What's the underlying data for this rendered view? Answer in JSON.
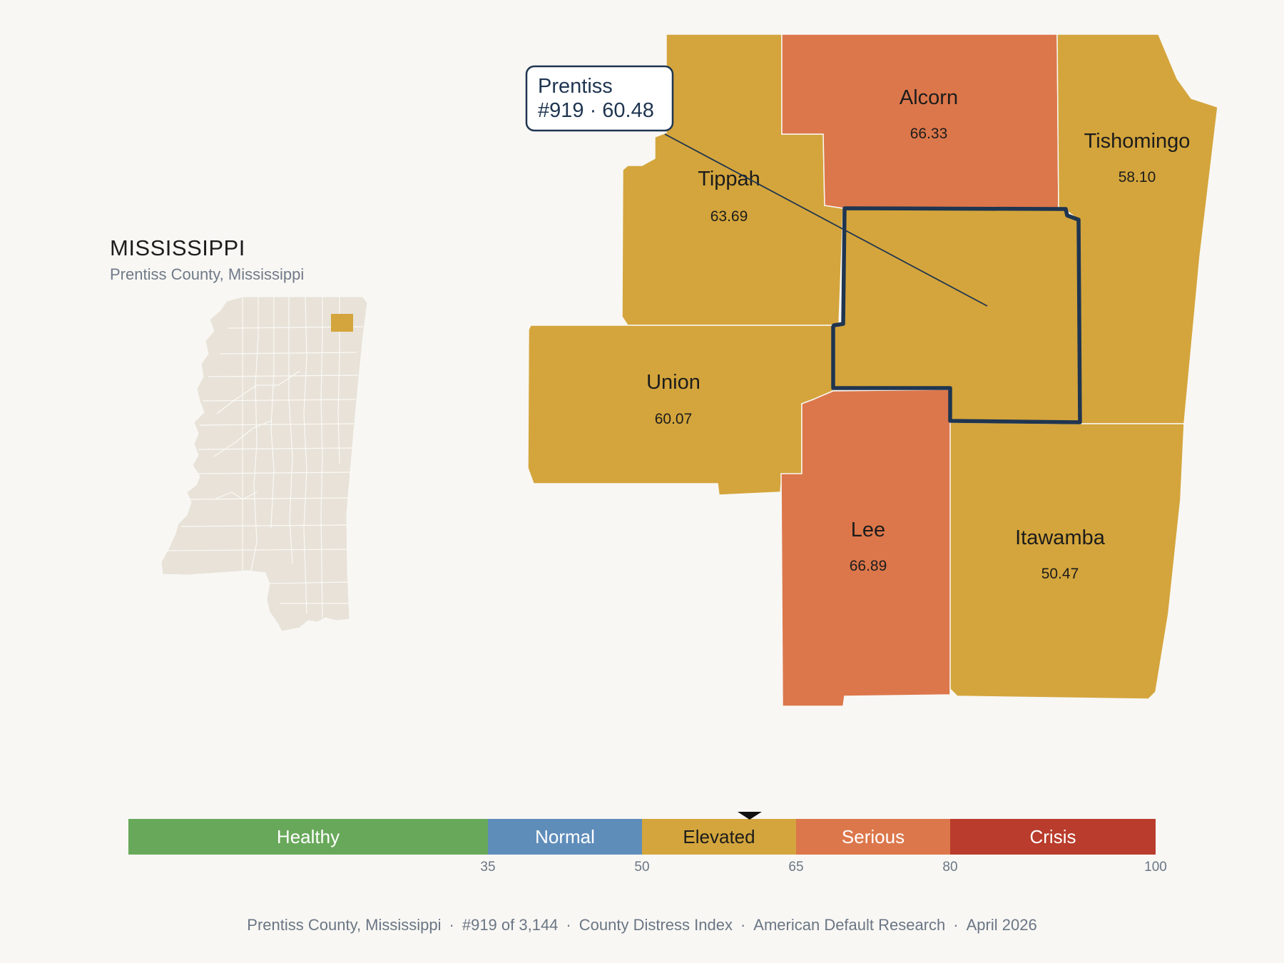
{
  "inset": {
    "state_title": "MISSISSIPPI",
    "subtitle": "Prentiss County, Mississippi"
  },
  "callout": {
    "name": "Prentiss",
    "detail": "#919 · 60.48"
  },
  "counties": [
    {
      "name": "Prentiss",
      "value": 60.48,
      "band": "Elevated",
      "selected": true
    },
    {
      "name": "Tippah",
      "value_text": "63.69",
      "band": "Elevated"
    },
    {
      "name": "Alcorn",
      "value_text": "66.33",
      "band": "Serious"
    },
    {
      "name": "Tishomingo",
      "value_text": "58.10",
      "band": "Elevated"
    },
    {
      "name": "Union",
      "value_text": "60.07",
      "band": "Elevated"
    },
    {
      "name": "Lee",
      "value_text": "66.89",
      "band": "Serious"
    },
    {
      "name": "Itawamba",
      "value_text": "50.47",
      "band": "Elevated"
    }
  ],
  "legend": {
    "bands": [
      {
        "label": "Healthy",
        "from": 0,
        "to": 35,
        "color": "#68a85a"
      },
      {
        "label": "Normal",
        "from": 35,
        "to": 50,
        "color": "#5f8dba"
      },
      {
        "label": "Elevated",
        "from": 50,
        "to": 65,
        "color": "#d4a53c"
      },
      {
        "label": "Serious",
        "from": 65,
        "to": 80,
        "color": "#dc774b"
      },
      {
        "label": "Crisis",
        "from": 80,
        "to": 100,
        "color": "#b93c2c"
      }
    ],
    "ticks": [
      "35",
      "50",
      "65",
      "80",
      "100"
    ],
    "marker_value": 60.48
  },
  "footer": {
    "county": "Prentiss County, Mississippi",
    "rank": "#919 of 3,144",
    "index": "County Distress Index",
    "source": "American Default Research",
    "date": "April 2026"
  },
  "colors": {
    "background": "#f8f7f4",
    "state_fill": "#e8e2d8",
    "highlight_outline": "#1f3550",
    "elevated": "#d4a53c",
    "serious": "#dc774b"
  }
}
